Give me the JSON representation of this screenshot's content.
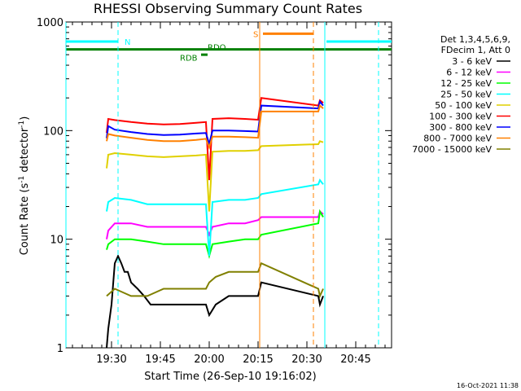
{
  "chart_data": {
    "type": "line",
    "title": "RHESSI Observing Summary Count Rates",
    "xlabel": "Start Time (26-Sep-10 19:16:02)",
    "ylabel": "Count Rate (s^-1 detector^-1)",
    "ylabel_main": "Count Rate (s",
    "ylabel_sup1": "-1",
    "ylabel_mid": " detector",
    "ylabel_sup2": "-1",
    "ylabel_end": ")",
    "yscale": "log",
    "ylim": [
      1,
      1000
    ],
    "xlim_minutes": [
      0,
      100
    ],
    "x_ticks": [
      {
        "label": "19:30",
        "t": 14
      },
      {
        "label": "19:45",
        "t": 29
      },
      {
        "label": "20:00",
        "t": 44
      },
      {
        "label": "20:15",
        "t": 59
      },
      {
        "label": "20:30",
        "t": 74
      },
      {
        "label": "20:45",
        "t": 89
      }
    ],
    "y_ticks": [
      {
        "label": "1",
        "v": 1
      },
      {
        "label": "10",
        "v": 10
      },
      {
        "label": "100",
        "v": 100
      },
      {
        "label": "1000",
        "v": 1000
      }
    ],
    "legend_header": [
      "Det 1,3,4,5,6,9,",
      "FDecim 1, Att 0"
    ],
    "series": [
      {
        "name": "3 - 6 keV",
        "color": "#000000",
        "points": [
          [
            12.5,
            1
          ],
          [
            13,
            1.5
          ],
          [
            14,
            2.5
          ],
          [
            15,
            6
          ],
          [
            16,
            7
          ],
          [
            17,
            6
          ],
          [
            18,
            5
          ],
          [
            19,
            5
          ],
          [
            20,
            4
          ],
          [
            22,
            3.5
          ],
          [
            24,
            3
          ],
          [
            26,
            2.5
          ],
          [
            30,
            2.5
          ],
          [
            35,
            2.5
          ],
          [
            40,
            2.5
          ],
          [
            43,
            2.5
          ],
          [
            44,
            2
          ],
          [
            46,
            2.5
          ],
          [
            50,
            3
          ],
          [
            55,
            3
          ],
          [
            59,
            3
          ],
          [
            60,
            4
          ],
          [
            77.5,
            3
          ],
          [
            78,
            2.5
          ],
          [
            79,
            3
          ]
        ]
      },
      {
        "name": "6 - 12 keV",
        "color": "#ff00ff",
        "points": [
          [
            12.5,
            10
          ],
          [
            13,
            12
          ],
          [
            15,
            14
          ],
          [
            20,
            14
          ],
          [
            25,
            13
          ],
          [
            30,
            13
          ],
          [
            35,
            13
          ],
          [
            40,
            13
          ],
          [
            43,
            13
          ],
          [
            44,
            11
          ],
          [
            45,
            13
          ],
          [
            50,
            14
          ],
          [
            55,
            14
          ],
          [
            59,
            15
          ],
          [
            60,
            16
          ],
          [
            77.5,
            16
          ],
          [
            78,
            18
          ],
          [
            79,
            17
          ]
        ]
      },
      {
        "name": "12 - 25 keV",
        "color": "#00ff00",
        "points": [
          [
            12.5,
            8
          ],
          [
            13,
            9
          ],
          [
            15,
            10
          ],
          [
            20,
            10
          ],
          [
            25,
            9.5
          ],
          [
            30,
            9
          ],
          [
            35,
            9
          ],
          [
            40,
            9
          ],
          [
            43,
            9
          ],
          [
            44,
            7
          ],
          [
            45,
            9
          ],
          [
            50,
            9.5
          ],
          [
            55,
            10
          ],
          [
            59,
            10
          ],
          [
            60,
            11
          ],
          [
            77.5,
            14
          ],
          [
            78,
            18
          ],
          [
            79,
            16
          ]
        ]
      },
      {
        "name": "25 - 50 keV",
        "color": "#00ffff",
        "points": [
          [
            12.5,
            18
          ],
          [
            13,
            22
          ],
          [
            15,
            24
          ],
          [
            20,
            23
          ],
          [
            25,
            21
          ],
          [
            30,
            21
          ],
          [
            35,
            21
          ],
          [
            40,
            21
          ],
          [
            43,
            21
          ],
          [
            44,
            7
          ],
          [
            45,
            22
          ],
          [
            50,
            23
          ],
          [
            55,
            23
          ],
          [
            59,
            24
          ],
          [
            60,
            26
          ],
          [
            77.5,
            32
          ],
          [
            78,
            35
          ],
          [
            79,
            32
          ]
        ]
      },
      {
        "name": "50 - 100 keV",
        "color": "#e0d000",
        "points": [
          [
            12.5,
            45
          ],
          [
            13,
            60
          ],
          [
            15,
            62
          ],
          [
            20,
            60
          ],
          [
            25,
            58
          ],
          [
            30,
            57
          ],
          [
            35,
            58
          ],
          [
            40,
            59
          ],
          [
            43,
            60
          ],
          [
            44,
            18
          ],
          [
            45,
            64
          ],
          [
            50,
            65
          ],
          [
            55,
            65
          ],
          [
            59,
            66
          ],
          [
            60,
            72
          ],
          [
            77.5,
            75
          ],
          [
            78,
            80
          ],
          [
            79,
            78
          ]
        ]
      },
      {
        "name": "100 - 300 keV",
        "color": "#ff0000",
        "points": [
          [
            12.5,
            95
          ],
          [
            13,
            128
          ],
          [
            15,
            125
          ],
          [
            20,
            120
          ],
          [
            25,
            116
          ],
          [
            30,
            114
          ],
          [
            35,
            115
          ],
          [
            40,
            118
          ],
          [
            43,
            120
          ],
          [
            44,
            35
          ],
          [
            45,
            128
          ],
          [
            50,
            130
          ],
          [
            55,
            128
          ],
          [
            59,
            126
          ],
          [
            60,
            200
          ],
          [
            77.5,
            170
          ],
          [
            78,
            190
          ],
          [
            79,
            180
          ]
        ]
      },
      {
        "name": "300 - 800 keV",
        "color": "#0000ff",
        "points": [
          [
            12.5,
            85
          ],
          [
            13,
            110
          ],
          [
            15,
            102
          ],
          [
            20,
            97
          ],
          [
            25,
            93
          ],
          [
            30,
            91
          ],
          [
            35,
            92
          ],
          [
            40,
            94
          ],
          [
            43,
            95
          ],
          [
            44,
            75
          ],
          [
            45,
            100
          ],
          [
            50,
            100
          ],
          [
            55,
            99
          ],
          [
            59,
            98
          ],
          [
            60,
            170
          ],
          [
            77.5,
            160
          ],
          [
            78,
            185
          ],
          [
            79,
            170
          ]
        ]
      },
      {
        "name": "800 - 7000 keV",
        "color": "#ff8000",
        "points": [
          [
            12.5,
            80
          ],
          [
            13,
            93
          ],
          [
            15,
            90
          ],
          [
            20,
            86
          ],
          [
            25,
            82
          ],
          [
            30,
            80
          ],
          [
            35,
            80
          ],
          [
            40,
            82
          ],
          [
            43,
            84
          ],
          [
            44,
            70
          ],
          [
            45,
            88
          ],
          [
            50,
            88
          ],
          [
            55,
            87
          ],
          [
            59,
            86
          ],
          [
            60,
            150
          ],
          [
            77.5,
            150
          ],
          [
            78,
            170
          ],
          [
            79,
            160
          ]
        ]
      },
      {
        "name": "7000 - 15000 keV",
        "color": "#808000",
        "points": [
          [
            12.5,
            3
          ],
          [
            15,
            3.5
          ],
          [
            20,
            3
          ],
          [
            25,
            3
          ],
          [
            30,
            3.5
          ],
          [
            35,
            3.5
          ],
          [
            40,
            3.5
          ],
          [
            43,
            3.5
          ],
          [
            44,
            4
          ],
          [
            46,
            4.5
          ],
          [
            50,
            5
          ],
          [
            55,
            5
          ],
          [
            59,
            5
          ],
          [
            60,
            6
          ],
          [
            77.5,
            3.5
          ],
          [
            78,
            3
          ],
          [
            79,
            3.5
          ]
        ]
      }
    ],
    "bars": [
      {
        "label": "",
        "color": "#00ffff",
        "y": 660,
        "segments": [
          [
            0,
            16
          ],
          [
            80,
            100
          ]
        ]
      },
      {
        "label": "N",
        "color": "#00ffff",
        "label_t": 18,
        "label_y": 660
      },
      {
        "label": "S",
        "color": "#ff8000",
        "y": 780,
        "segments": [
          [
            60.5,
            76
          ]
        ],
        "label_t": 57.5,
        "label_y": 780
      },
      {
        "label": "RDO",
        "color": "#008000",
        "y": 560,
        "segments": [
          [
            0,
            100
          ]
        ],
        "label_t": 43.5,
        "label_y": 590
      },
      {
        "label": "RDB",
        "color": "#008000",
        "y": 500,
        "segments": [
          [
            41.5,
            43.5
          ]
        ],
        "label_t": 35,
        "label_y": 470
      }
    ],
    "vlines": [
      {
        "t": 0,
        "color": "#00ffff",
        "dash": false
      },
      {
        "t": 16,
        "color": "#00ffff",
        "dash": true
      },
      {
        "t": 59.5,
        "color": "#ff8000",
        "dash": false
      },
      {
        "t": 76,
        "color": "#ff8000",
        "dash": true
      },
      {
        "t": 79.5,
        "color": "#00ffff",
        "dash": false
      },
      {
        "t": 96,
        "color": "#00ffff",
        "dash": true
      }
    ]
  },
  "footer": {
    "timestamp": "16-Oct-2021 11:38"
  }
}
